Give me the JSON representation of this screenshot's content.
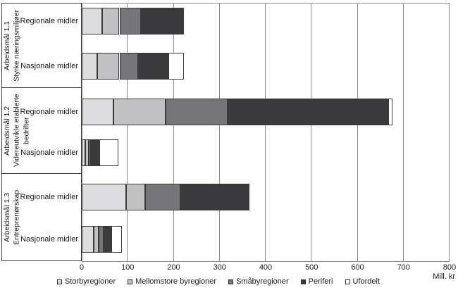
{
  "chart_data": {
    "type": "bar",
    "orientation": "horizontal",
    "stacked": true,
    "title": "",
    "unit_label": "Mill. kr",
    "xlim": [
      0,
      800
    ],
    "xticks": [
      0,
      100,
      200,
      300,
      400,
      500,
      600,
      700,
      800
    ],
    "grid": "vertical",
    "legend_position": "bottom",
    "series": [
      {
        "name": "Storbyregioner",
        "color": "#dcdcde"
      },
      {
        "name": "Mellomstore byregioner",
        "color": "#c1c1c3"
      },
      {
        "name": "Småbyregioner",
        "color": "#76767a"
      },
      {
        "name": "Periferi",
        "color": "#3a3a3c"
      },
      {
        "name": "Ufordelt",
        "color": "#ffffff"
      }
    ],
    "groups": [
      {
        "title": "Arbeidsmål 1.1",
        "subtitle": "Styrke næringsmiljøer",
        "rows": [
          {
            "label": "Regionale midler",
            "values": [
              44,
              38,
              46,
              94,
              0
            ],
            "total": 222
          },
          {
            "label": "Nasjonale midler",
            "values": [
              34,
              48,
              40,
              66,
              34
            ],
            "total": 222
          }
        ]
      },
      {
        "title": "Arbeidsmål 1.2",
        "subtitle": "Videreutvikle etablerte bedrifter",
        "rows": [
          {
            "label": "Regionale midler",
            "values": [
              69,
              114,
              135,
              348,
              10
            ],
            "total": 676
          },
          {
            "label": "Nasjonale midler",
            "values": [
              7,
              8,
              5,
              19,
              41
            ],
            "total": 80
          }
        ]
      },
      {
        "title": "Arbeidsmål 1.3",
        "subtitle": "Entreprenørskap",
        "rows": [
          {
            "label": "Regionale midler",
            "values": [
              97,
              41,
              77,
              149,
              0
            ],
            "total": 364
          },
          {
            "label": "Nasjonale midler",
            "values": [
              26,
              11,
              10,
              17,
              24
            ],
            "total": 88
          }
        ]
      }
    ],
    "colors": {
      "grid": "#8c8c8c",
      "bar_border": "#3a3a3a",
      "box_border": "#3f3f3f",
      "text": "#1a1a1a"
    }
  }
}
